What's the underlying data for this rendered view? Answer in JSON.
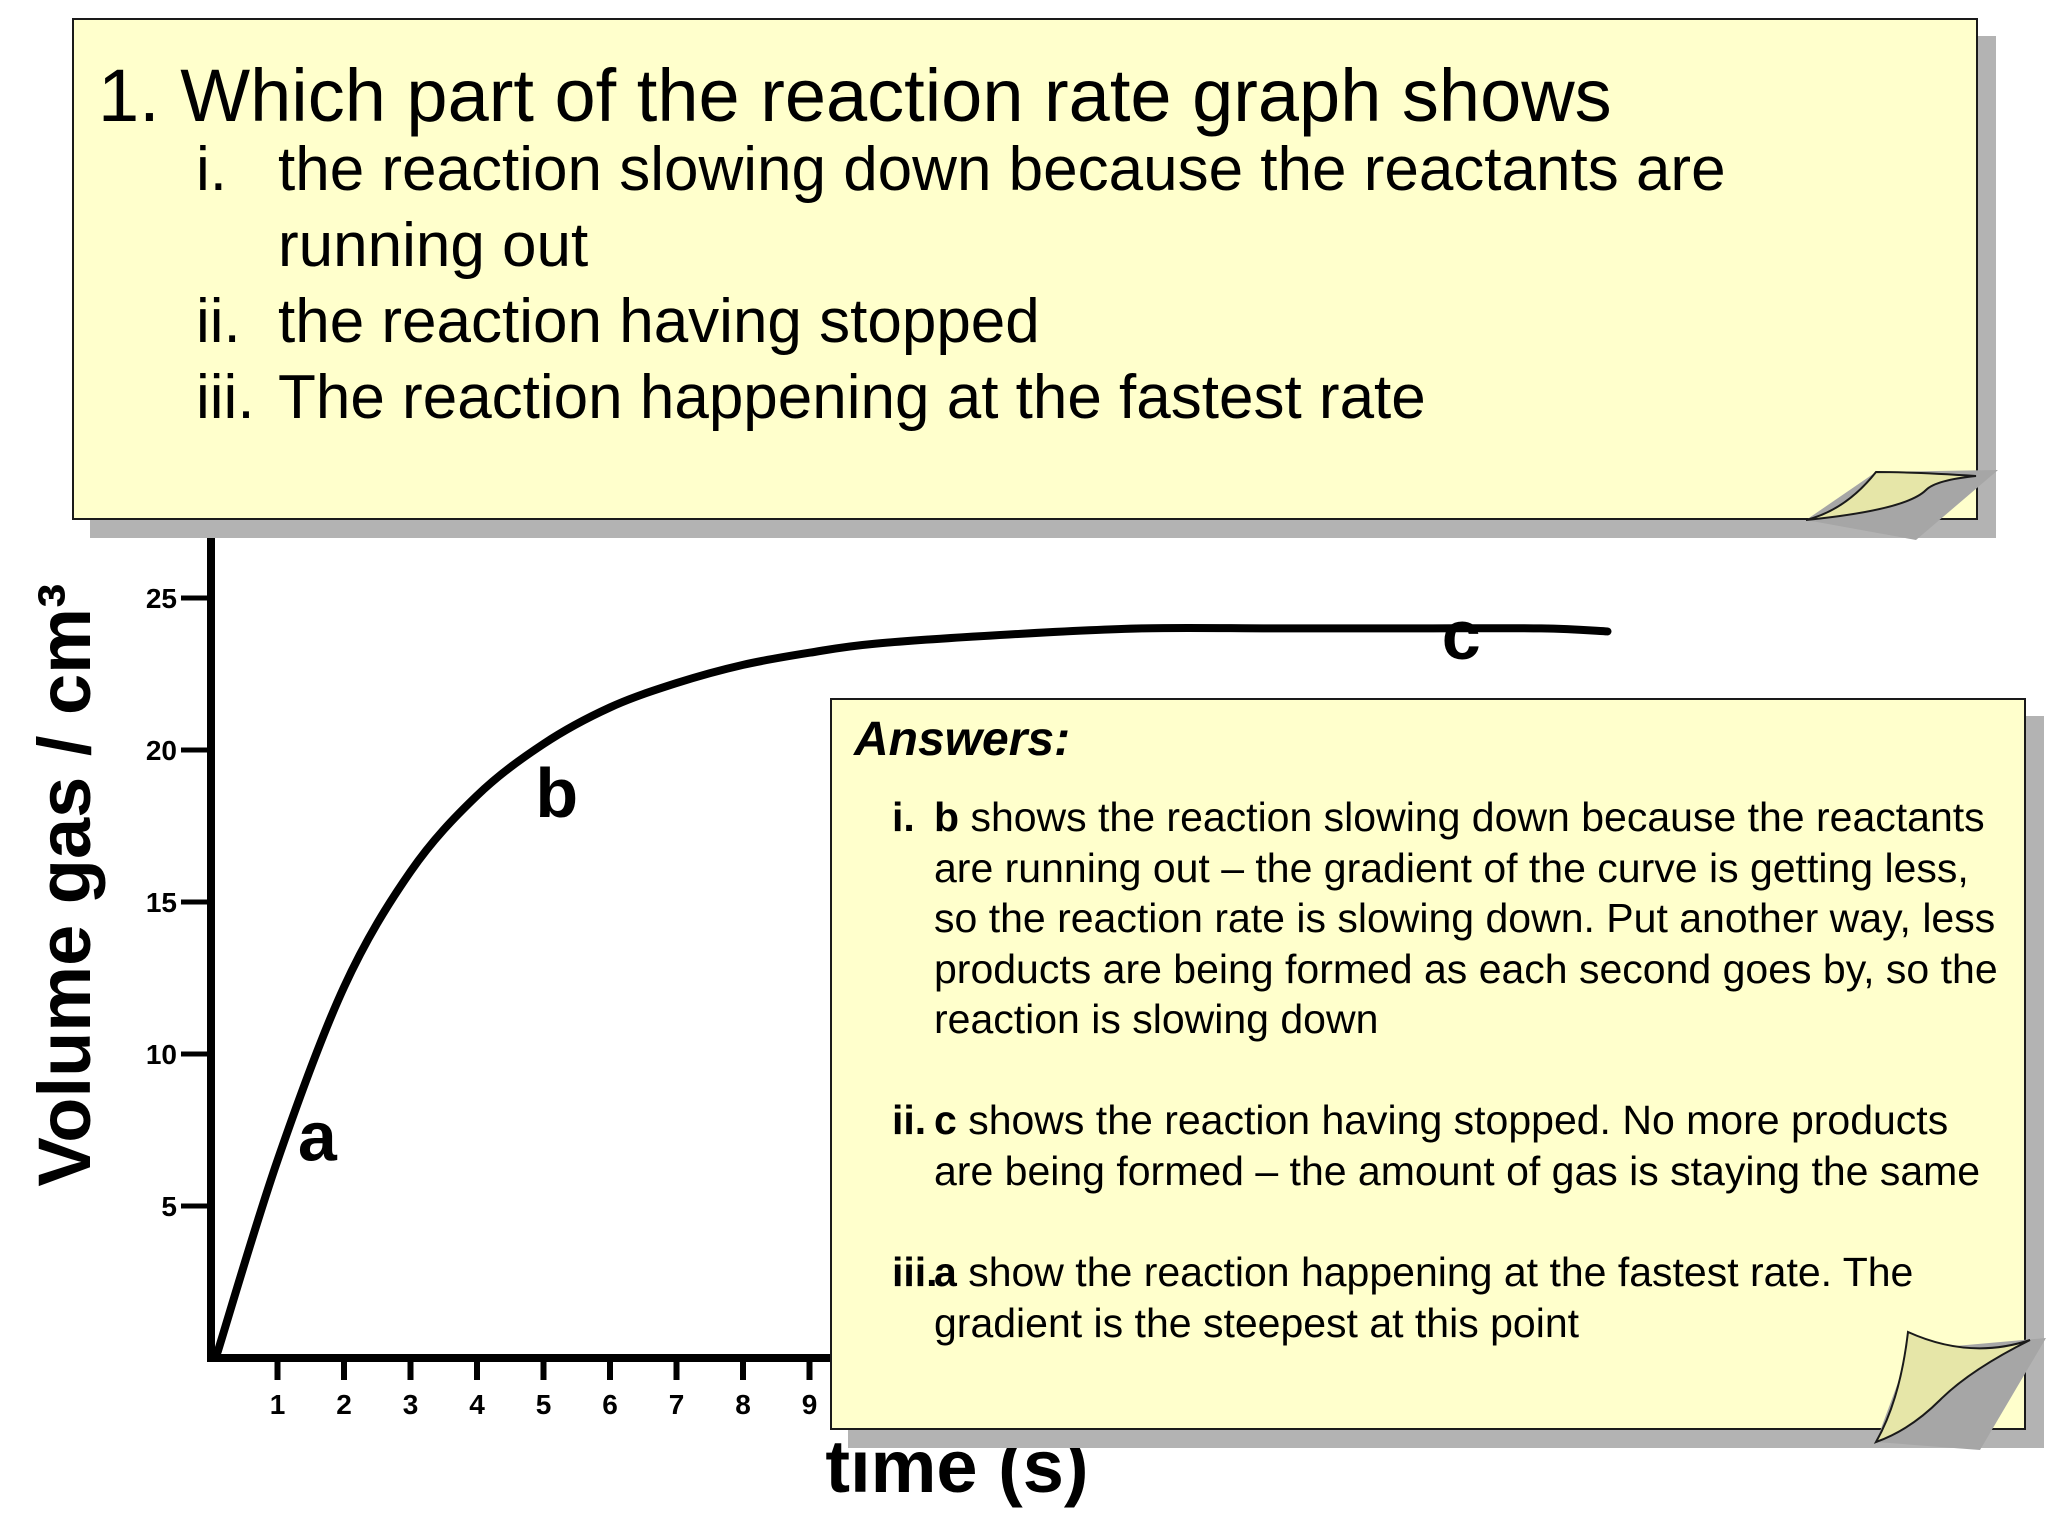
{
  "question": {
    "title": "1. Which part of the reaction rate graph shows",
    "items": [
      {
        "num": "i.",
        "text": "the reaction slowing down because the reactants are",
        "text2": "running out"
      },
      {
        "num": "ii.",
        "text": "the reaction having stopped"
      },
      {
        "num": "iii.",
        "text": "The reaction happening at the fastest rate"
      }
    ]
  },
  "answers": {
    "title": "Answers:",
    "items": [
      {
        "num": "i.",
        "letter": "b",
        "text": " shows the reaction slowing down because the reactants are running out – the gradient of the curve is getting less, so the reaction rate is slowing down. Put another way, less products are being formed as each second goes by, so the reaction is slowing down"
      },
      {
        "num": "ii.",
        "letter": "c",
        "text": " shows the reaction having stopped.  No more products are being formed – the amount of gas is staying the same"
      },
      {
        "num": "iii.",
        "letter": "a",
        "text": " show the reaction happening at the fastest rate. The gradient is the steepest at this point"
      }
    ]
  },
  "chart_data": {
    "type": "line",
    "ylabel": "Volume gas / cm³",
    "xlabel": "time (s)",
    "x_ticks": [
      "1",
      "2",
      "3",
      "4",
      "5",
      "6",
      "7",
      "8",
      "9"
    ],
    "y_ticks": [
      "5",
      "10",
      "15",
      "20",
      "25"
    ],
    "ylim": [
      0,
      25
    ],
    "series": [
      {
        "x": [
          0.1,
          1,
          2,
          3,
          4,
          5,
          6,
          7,
          8,
          9,
          10,
          12,
          14,
          16,
          18,
          20,
          21
        ],
        "y": [
          0.2,
          6.5,
          12.2,
          16.0,
          18.5,
          20.2,
          21.4,
          22.2,
          22.8,
          23.2,
          23.5,
          23.8,
          24.0,
          24.0,
          24.0,
          24.0,
          23.9
        ]
      }
    ],
    "annotations": [
      {
        "text": "a",
        "x": 1.6,
        "y": 6.5
      },
      {
        "text": "b",
        "x": 5.2,
        "y": 17.8
      },
      {
        "text": "c",
        "x": 18.8,
        "y": 23.0
      }
    ],
    "line_color": "#000000"
  }
}
